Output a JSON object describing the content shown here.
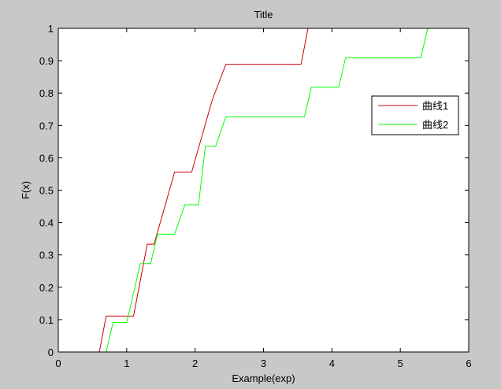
{
  "chart_data": {
    "type": "line",
    "title": "Title",
    "xlabel": "Example(exp)",
    "ylabel": "F(x)",
    "xlim": [
      0,
      6
    ],
    "ylim": [
      0,
      1
    ],
    "xticks": [
      0,
      1,
      2,
      3,
      4,
      5,
      6
    ],
    "yticks": [
      0,
      0.1,
      0.2,
      0.3,
      0.4,
      0.5,
      0.6,
      0.7,
      0.8,
      0.9,
      1
    ],
    "xtick_labels": [
      "0",
      "1",
      "2",
      "3",
      "4",
      "5",
      "6"
    ],
    "ytick_labels": [
      "0",
      "0.1",
      "0.2",
      "0.3",
      "0.4",
      "0.5",
      "0.6",
      "0.7",
      "0.8",
      "0.9",
      "1"
    ],
    "grid": false,
    "legend_position": "upper-right",
    "series": [
      {
        "name": "曲线1",
        "color": "#cc0000",
        "x": [
          0,
          0.6,
          0.7,
          1.1,
          1.3,
          1.4,
          1.55,
          1.7,
          1.95,
          2.1,
          2.25,
          2.45,
          3.55,
          3.65,
          6.0
        ],
        "y": [
          0,
          0,
          0.111,
          0.111,
          0.333,
          0.333,
          0.444,
          0.556,
          0.556,
          0.667,
          0.778,
          0.889,
          0.889,
          1.0,
          1.0
        ]
      },
      {
        "name": "曲线2",
        "color": "#00ff00",
        "x": [
          0,
          0.7,
          0.8,
          1.0,
          1.2,
          1.35,
          1.45,
          1.7,
          1.85,
          2.05,
          2.15,
          2.3,
          2.45,
          3.6,
          3.7,
          4.1,
          4.2,
          5.3,
          5.4,
          6.0
        ],
        "y": [
          0,
          0,
          0.091,
          0.091,
          0.273,
          0.273,
          0.364,
          0.364,
          0.455,
          0.455,
          0.636,
          0.636,
          0.727,
          0.727,
          0.818,
          0.818,
          0.909,
          0.909,
          1.0,
          1.0
        ]
      }
    ]
  }
}
